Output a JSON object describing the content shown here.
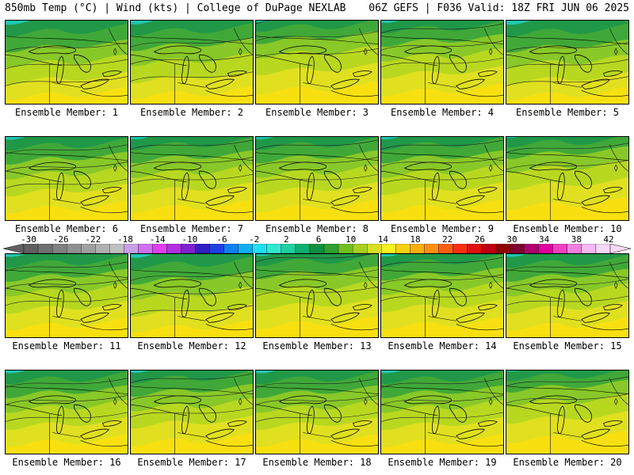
{
  "header": {
    "left_title": "850mb Temp (°C) | Wind (kts) | College of DuPage NEXLAB",
    "right_title": "06Z GEFS | F036 Valid: 18Z FRI JUN 06 2025"
  },
  "panels": [
    {
      "label": "Ensemble Member: 1",
      "cold": 0.2
    },
    {
      "label": "Ensemble Member: 2",
      "cold": 0.3
    },
    {
      "label": "Ensemble Member: 3",
      "cold": 0.8
    },
    {
      "label": "Ensemble Member: 4",
      "cold": 0.6
    },
    {
      "label": "Ensemble Member: 5",
      "cold": 0.2
    },
    {
      "label": "Ensemble Member: 6",
      "cold": 0.5
    },
    {
      "label": "Ensemble Member: 7",
      "cold": 0.6
    },
    {
      "label": "Ensemble Member: 8",
      "cold": 0.6
    },
    {
      "label": "Ensemble Member: 9",
      "cold": 0.6
    },
    {
      "label": "Ensemble Member: 10",
      "cold": 0.9
    },
    {
      "label": "Ensemble Member: 11",
      "cold": 0.5
    },
    {
      "label": "Ensemble Member: 12",
      "cold": 0.3
    },
    {
      "label": "Ensemble Member: 13",
      "cold": 0.7
    },
    {
      "label": "Ensemble Member: 14",
      "cold": 0.6
    },
    {
      "label": "Ensemble Member: 15",
      "cold": 0.5
    },
    {
      "label": "Ensemble Member: 16",
      "cold": 0.5
    },
    {
      "label": "Ensemble Member: 17",
      "cold": 0.6
    },
    {
      "label": "Ensemble Member: 18",
      "cold": 0.5
    },
    {
      "label": "Ensemble Member: 19",
      "cold": 0.5
    },
    {
      "label": "Ensemble Member: 20",
      "cold": 0.9
    }
  ],
  "colorbar": {
    "labels": [
      "-30",
      "-26",
      "-22",
      "-18",
      "-14",
      "-10",
      "-6",
      "-2",
      "2",
      "6",
      "10",
      "14",
      "18",
      "22",
      "26",
      "30",
      "34",
      "38",
      "42"
    ],
    "colors": [
      "#606060",
      "#707070",
      "#808080",
      "#909090",
      "#a0a0a0",
      "#b0b0b0",
      "#c0c0c0",
      "#c8a0e8",
      "#d070f0",
      "#e040f0",
      "#b030e0",
      "#8020d0",
      "#3020c0",
      "#2040e0",
      "#1080f0",
      "#10b0f0",
      "#20e0f0",
      "#30e8d0",
      "#20d0a0",
      "#10b070",
      "#109040",
      "#30a030",
      "#70c020",
      "#a8d020",
      "#d8e020",
      "#f8f020",
      "#f8d010",
      "#f8b010",
      "#f89010",
      "#f86010",
      "#f83010",
      "#e01010",
      "#c00010",
      "#900000",
      "#800030",
      "#b00070",
      "#e000a0",
      "#f040c0",
      "#f080e0",
      "#f8b8f0",
      "#f8d8f8"
    ]
  }
}
